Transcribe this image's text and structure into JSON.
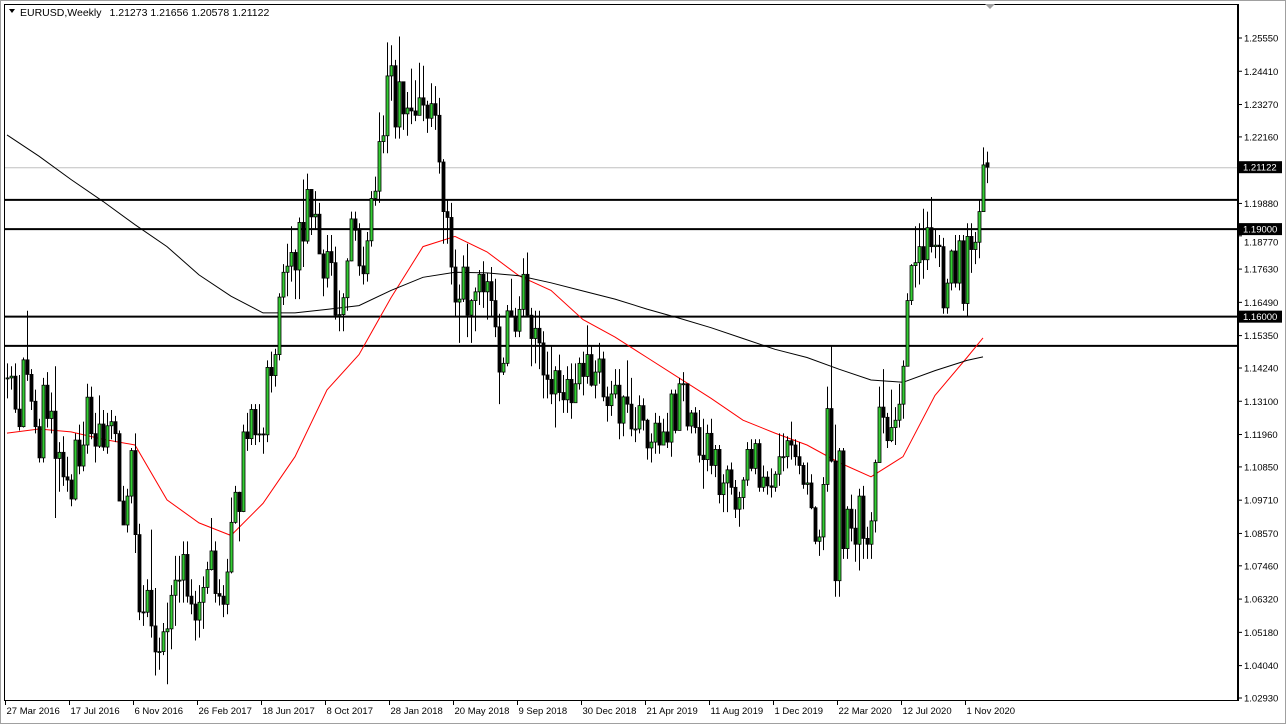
{
  "header": {
    "symbol": "EURUSD,Weekly",
    "ohlc": "1.21273 1.21656 1.20578 1.21122",
    "menu_icon": "triangle-down-icon"
  },
  "chart_data": {
    "type": "candlestick",
    "symbol": "EURUSD",
    "timeframe": "Weekly",
    "bar_dates_start": "2016-03-27",
    "colors": {
      "bull": "#33cc33",
      "bear": "#000000",
      "outline": "#000000",
      "ma_red": "#ff0000",
      "ma_black": "#000000",
      "price_line": "#c0c0c0"
    },
    "ylim": [
      1.0293,
      1.2555
    ],
    "y_ticks": [
      "1.25550",
      "1.24410",
      "1.23270",
      "1.22160",
      "1.19880",
      "1.18770",
      "1.17630",
      "1.16490",
      "1.15350",
      "1.14240",
      "1.13100",
      "1.11960",
      "1.10850",
      "1.09710",
      "1.08570",
      "1.07460",
      "1.06320",
      "1.05180",
      "1.04040",
      "1.02930"
    ],
    "x_ticks": [
      "27 Mar 2016",
      "17 Jul 2016",
      "6 Nov 2016",
      "26 Feb 2017",
      "18 Jun 2017",
      "8 Oct 2017",
      "28 Jan 2018",
      "20 May 2018",
      "9 Sep 2018",
      "30 Dec 2018",
      "21 Apr 2019",
      "11 Aug 2019",
      "1 Dec 2019",
      "22 Mar 2020",
      "12 Jul 2020",
      "1 Nov 2020"
    ],
    "horizontal_lines": [
      {
        "price": 1.2,
        "label": ""
      },
      {
        "price": 1.19,
        "label": "1.19000"
      },
      {
        "price": 1.16,
        "label": "1.16000"
      },
      {
        "price": 1.15,
        "label": ""
      }
    ],
    "current_price": {
      "price": 1.21122,
      "label": "1.21122"
    },
    "close": [
      1.139,
      1.1396,
      1.1283,
      1.1223,
      1.1452,
      1.1402,
      1.131,
      1.1223,
      1.1116,
      1.1365,
      1.1251,
      1.1276,
      1.1114,
      1.1135,
      1.1051,
      1.104,
      1.0975,
      1.1177,
      1.1088,
      1.116,
      1.1324,
      1.1199,
      1.1156,
      1.1232,
      1.1153,
      1.1226,
      1.124,
      1.1199,
      1.0968,
      1.0886,
      1.0985,
      1.1141,
      1.0853,
      1.0588,
      1.0587,
      1.0662,
      1.054,
      1.0451,
      1.0452,
      1.052,
      1.053,
      1.0645,
      1.0697,
      1.0697,
      1.0785,
      1.0642,
      1.0615,
      1.056,
      1.0621,
      1.0672,
      1.0733,
      1.0797,
      1.0651,
      1.0642,
      1.0614,
      1.0725,
      1.0895,
      1.0998,
      1.0932,
      1.1205,
      1.1182,
      1.1282,
      1.1195,
      1.1198,
      1.1195,
      1.1426,
      1.1398,
      1.147,
      1.1667,
      1.1752,
      1.1773,
      1.182,
      1.176,
      1.1923,
      1.1859,
      1.2036,
      1.1942,
      1.1951,
      1.1815,
      1.1732,
      1.1823,
      1.1785,
      1.1605,
      1.1607,
      1.1665,
      1.1791,
      1.1935,
      1.1896,
      1.1774,
      1.1747,
      1.186,
      1.2005,
      1.203,
      1.22,
      1.222,
      1.2425,
      1.246,
      1.225,
      1.2405,
      1.2295,
      1.2315,
      1.2305,
      1.229,
      1.235,
      1.2325,
      1.228,
      1.233,
      1.229,
      1.213,
      1.196,
      1.194,
      1.177,
      1.165,
      1.166,
      1.177,
      1.1605,
      1.1655,
      1.1685,
      1.1745,
      1.1685,
      1.172,
      1.1655,
      1.1565,
      1.141,
      1.144,
      1.162,
      1.16,
      1.155,
      1.1625,
      1.1745,
      1.1605,
      1.1525,
      1.156,
      1.151,
      1.14,
      1.1385,
      1.1335,
      1.1415,
      1.134,
      1.1315,
      1.1385,
      1.1305,
      1.137,
      1.144,
      1.1395,
      1.147,
      1.1365,
      1.141,
      1.1455,
      1.1325,
      1.1295,
      1.1335,
      1.1365,
      1.1235,
      1.1325,
      1.13,
      1.1215,
      1.1215,
      1.1295,
      1.1245,
      1.115,
      1.117,
      1.1235,
      1.116,
      1.1205,
      1.117,
      1.1335,
      1.121,
      1.137,
      1.137,
      1.1225,
      1.127,
      1.122,
      1.1125,
      1.111,
      1.12,
      1.109,
      1.1145,
      1.099,
      1.103,
      1.1075,
      1.1015,
      1.094,
      1.098,
      1.104,
      1.1145,
      1.108,
      1.1165,
      1.1015,
      1.105,
      1.102,
      1.1015,
      1.106,
      1.112,
      1.112,
      1.1175,
      1.116,
      1.112,
      1.109,
      1.1025,
      1.103,
      1.0945,
      1.083,
      1.0845,
      1.1025,
      1.1285,
      1.1105,
      1.0695,
      1.114,
      1.0805,
      1.094,
      1.0875,
      1.082,
      1.0985,
      1.084,
      1.082,
      1.09,
      1.11,
      1.129,
      1.1255,
      1.1175,
      1.122,
      1.1245,
      1.13,
      1.143,
      1.1655,
      1.1775,
      1.1785,
      1.184,
      1.1795,
      1.1905,
      1.184,
      1.1845,
      1.184,
      1.163,
      1.1715,
      1.1825,
      1.1715,
      1.186,
      1.1645,
      1.1875,
      1.183,
      1.1855,
      1.196,
      1.212,
      1.21122
    ],
    "high": [
      1.144,
      1.143,
      1.144,
      1.14,
      1.146,
      1.162,
      1.142,
      1.135,
      1.125,
      1.139,
      1.141,
      1.134,
      1.143,
      1.117,
      1.119,
      1.112,
      1.106,
      1.12,
      1.123,
      1.124,
      1.137,
      1.136,
      1.127,
      1.133,
      1.128,
      1.127,
      1.128,
      1.126,
      1.121,
      1.102,
      1.101,
      1.115,
      1.12,
      1.089,
      1.068,
      1.07,
      1.087,
      1.067,
      1.05,
      1.055,
      1.062,
      1.068,
      1.078,
      1.078,
      1.083,
      1.083,
      1.07,
      1.066,
      1.068,
      1.071,
      1.076,
      1.091,
      1.083,
      1.07,
      1.068,
      1.077,
      1.098,
      1.102,
      1.1,
      1.123,
      1.127,
      1.13,
      1.13,
      1.13,
      1.122,
      1.145,
      1.148,
      1.149,
      1.168,
      1.178,
      1.185,
      1.191,
      1.183,
      1.194,
      1.207,
      1.209,
      1.203,
      1.203,
      1.199,
      1.183,
      1.188,
      1.188,
      1.184,
      1.169,
      1.168,
      1.18,
      1.196,
      1.196,
      1.192,
      1.184,
      1.189,
      1.203,
      1.208,
      1.23,
      1.229,
      1.254,
      1.253,
      1.248,
      1.256,
      1.24,
      1.237,
      1.245,
      1.241,
      1.247,
      1.246,
      1.234,
      1.24,
      1.239,
      1.235,
      1.214,
      1.2,
      1.199,
      1.183,
      1.171,
      1.181,
      1.185,
      1.166,
      1.17,
      1.176,
      1.179,
      1.175,
      1.177,
      1.173,
      1.161,
      1.146,
      1.164,
      1.173,
      1.163,
      1.167,
      1.18,
      1.182,
      1.163,
      1.162,
      1.162,
      1.155,
      1.148,
      1.15,
      1.143,
      1.147,
      1.14,
      1.143,
      1.144,
      1.144,
      1.146,
      1.148,
      1.157,
      1.15,
      1.145,
      1.151,
      1.148,
      1.136,
      1.138,
      1.142,
      1.142,
      1.133,
      1.145,
      1.139,
      1.129,
      1.133,
      1.132,
      1.125,
      1.12,
      1.127,
      1.126,
      1.125,
      1.127,
      1.135,
      1.135,
      1.139,
      1.141,
      1.136,
      1.128,
      1.129,
      1.128,
      1.125,
      1.123,
      1.125,
      1.116,
      1.116,
      1.106,
      1.109,
      1.11,
      1.104,
      1.1,
      1.105,
      1.117,
      1.118,
      1.118,
      1.118,
      1.109,
      1.107,
      1.108,
      1.107,
      1.12,
      1.12,
      1.119,
      1.124,
      1.118,
      1.117,
      1.11,
      1.11,
      1.106,
      1.095,
      1.087,
      1.105,
      1.136,
      1.15,
      1.123,
      1.115,
      1.115,
      1.095,
      1.099,
      1.094,
      1.101,
      1.102,
      1.088,
      1.093,
      1.111,
      1.136,
      1.142,
      1.127,
      1.135,
      1.129,
      1.137,
      1.145,
      1.168,
      1.178,
      1.191,
      1.192,
      1.197,
      1.196,
      1.201,
      1.19,
      1.188,
      1.187,
      1.173,
      1.183,
      1.188,
      1.188,
      1.188,
      1.192,
      1.192,
      1.189,
      1.2,
      1.218,
      1.21656
    ],
    "low": [
      1.132,
      1.135,
      1.127,
      1.121,
      1.122,
      1.138,
      1.128,
      1.12,
      1.11,
      1.11,
      1.122,
      1.12,
      1.091,
      1.1,
      1.102,
      1.1,
      1.095,
      1.097,
      1.106,
      1.107,
      1.113,
      1.118,
      1.11,
      1.115,
      1.114,
      1.113,
      1.118,
      1.117,
      1.097,
      1.089,
      1.086,
      1.096,
      1.079,
      1.056,
      1.054,
      1.057,
      1.05,
      1.037,
      1.039,
      1.044,
      1.034,
      1.046,
      1.054,
      1.062,
      1.062,
      1.062,
      1.058,
      1.049,
      1.05,
      1.053,
      1.065,
      1.073,
      1.062,
      1.061,
      1.057,
      1.058,
      1.072,
      1.089,
      1.083,
      1.093,
      1.114,
      1.116,
      1.116,
      1.117,
      1.113,
      1.117,
      1.134,
      1.136,
      1.145,
      1.164,
      1.167,
      1.172,
      1.166,
      1.166,
      1.177,
      1.185,
      1.188,
      1.19,
      1.182,
      1.167,
      1.17,
      1.174,
      1.159,
      1.155,
      1.155,
      1.162,
      1.179,
      1.186,
      1.174,
      1.171,
      1.172,
      1.184,
      1.198,
      1.199,
      1.216,
      1.216,
      1.234,
      1.221,
      1.221,
      1.224,
      1.222,
      1.226,
      1.227,
      1.229,
      1.227,
      1.223,
      1.225,
      1.224,
      1.209,
      1.185,
      1.185,
      1.171,
      1.16,
      1.151,
      1.165,
      1.153,
      1.151,
      1.155,
      1.164,
      1.163,
      1.159,
      1.16,
      1.153,
      1.13,
      1.14,
      1.143,
      1.16,
      1.153,
      1.153,
      1.16,
      1.16,
      1.143,
      1.144,
      1.142,
      1.132,
      1.132,
      1.13,
      1.122,
      1.131,
      1.127,
      1.127,
      1.125,
      1.131,
      1.135,
      1.133,
      1.137,
      1.136,
      1.132,
      1.137,
      1.131,
      1.124,
      1.126,
      1.132,
      1.118,
      1.119,
      1.127,
      1.119,
      1.117,
      1.12,
      1.121,
      1.111,
      1.11,
      1.113,
      1.113,
      1.116,
      1.115,
      1.112,
      1.12,
      1.121,
      1.131,
      1.121,
      1.12,
      1.12,
      1.11,
      1.101,
      1.107,
      1.106,
      1.105,
      1.096,
      1.093,
      1.093,
      1.099,
      1.091,
      1.088,
      1.094,
      1.102,
      1.107,
      1.106,
      1.1,
      1.1,
      1.099,
      1.098,
      1.1,
      1.102,
      1.107,
      1.108,
      1.111,
      1.109,
      1.106,
      1.101,
      1.099,
      1.094,
      1.082,
      1.078,
      1.08,
      1.1,
      1.11,
      1.064,
      1.064,
      1.077,
      1.077,
      1.083,
      1.076,
      1.073,
      1.077,
      1.077,
      1.077,
      1.086,
      1.11,
      1.12,
      1.115,
      1.117,
      1.116,
      1.122,
      1.125,
      1.143,
      1.164,
      1.17,
      1.171,
      1.173,
      1.176,
      1.182,
      1.18,
      1.177,
      1.161,
      1.161,
      1.169,
      1.17,
      1.169,
      1.162,
      1.16,
      1.175,
      1.178,
      1.18,
      1.196,
      1.20578
    ],
    "last_open": 1.21273,
    "ma_dates": [
      "2016-03-27",
      "2016-05-22",
      "2016-07-17",
      "2016-09-11",
      "2016-11-06",
      "2017-01-01",
      "2017-02-26",
      "2017-04-23",
      "2017-06-18",
      "2017-08-13",
      "2017-10-08",
      "2017-12-03",
      "2018-01-28",
      "2018-03-25",
      "2018-05-20",
      "2018-07-15",
      "2018-09-09",
      "2018-11-04",
      "2018-12-30",
      "2019-02-24",
      "2019-04-21",
      "2019-06-16",
      "2019-08-11",
      "2019-10-06",
      "2019-12-01",
      "2020-01-26",
      "2020-03-22",
      "2020-05-17",
      "2020-07-12",
      "2020-09-06",
      "2020-11-01",
      "2020-11-29"
    ],
    "ma_red": [
      1.1201,
      1.1215,
      1.1205,
      1.118,
      1.116,
      1.0972,
      1.0893,
      1.085,
      1.096,
      1.112,
      1.1349,
      1.147,
      1.1665,
      1.184,
      1.1875,
      1.1822,
      1.174,
      1.169,
      1.159,
      1.153,
      1.146,
      1.139,
      1.132,
      1.1245,
      1.1201,
      1.116,
      1.11,
      1.1051,
      1.112,
      1.133,
      1.146,
      1.1527
    ],
    "ma_black": [
      1.2223,
      1.215,
      1.207,
      1.1995,
      1.1915,
      1.184,
      1.1743,
      1.167,
      1.1613,
      1.1613,
      1.1625,
      1.1638,
      1.169,
      1.1735,
      1.1752,
      1.175,
      1.174,
      1.1716,
      1.1688,
      1.166,
      1.1626,
      1.1595,
      1.1562,
      1.1525,
      1.1488,
      1.146,
      1.142,
      1.1383,
      1.1375,
      1.1415,
      1.145,
      1.1462
    ]
  }
}
